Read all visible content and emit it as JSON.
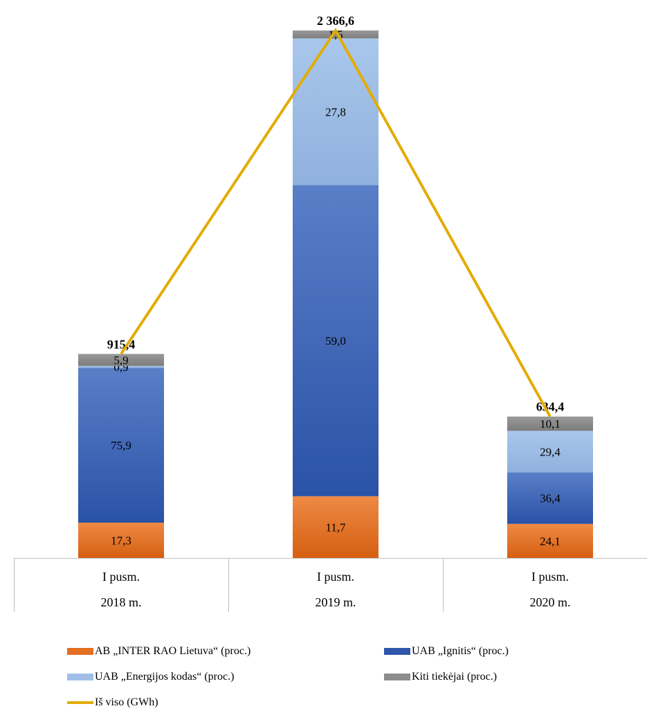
{
  "chart_data": {
    "type": "bar",
    "stacked": true,
    "categories": [
      [
        "I pusm.",
        "2018 m."
      ],
      [
        "I pusm.",
        "2019 m."
      ],
      [
        "I pusm.",
        "2020 m."
      ]
    ],
    "series": [
      {
        "name": "AB „INTER RAO Lietuva“ (proc.)",
        "values": [
          17.3,
          11.7,
          24.1
        ],
        "labels": [
          "17,3",
          "11,7",
          "24,1"
        ],
        "color": "#e36f20"
      },
      {
        "name": "UAB  „Ignitis“  (proc.)",
        "values": [
          75.9,
          59.0,
          36.4
        ],
        "labels": [
          "75,9",
          "59,0",
          "36,4"
        ],
        "color": "#3a62b6"
      },
      {
        "name": "UAB „Energijos kodas“ (proc.)",
        "values": [
          0.9,
          27.8,
          29.4
        ],
        "labels": [
          "0,9",
          "27,8",
          "29,4"
        ],
        "color": "#9fbfe6"
      },
      {
        "name": "Kiti tiekėjai (proc.)",
        "values": [
          5.9,
          1.5,
          10.1
        ],
        "labels": [
          "5,9",
          "1,5",
          "10,1"
        ],
        "color": "#8c8c8c"
      }
    ],
    "line_series": {
      "name": "Iš viso (GWh)",
      "values": [
        915.4,
        2366.6,
        634.4
      ],
      "labels": [
        "915,4",
        "2 366,6",
        "634,4"
      ],
      "color": "#e3ac06"
    },
    "grid": false,
    "legend_position": "bottom"
  }
}
